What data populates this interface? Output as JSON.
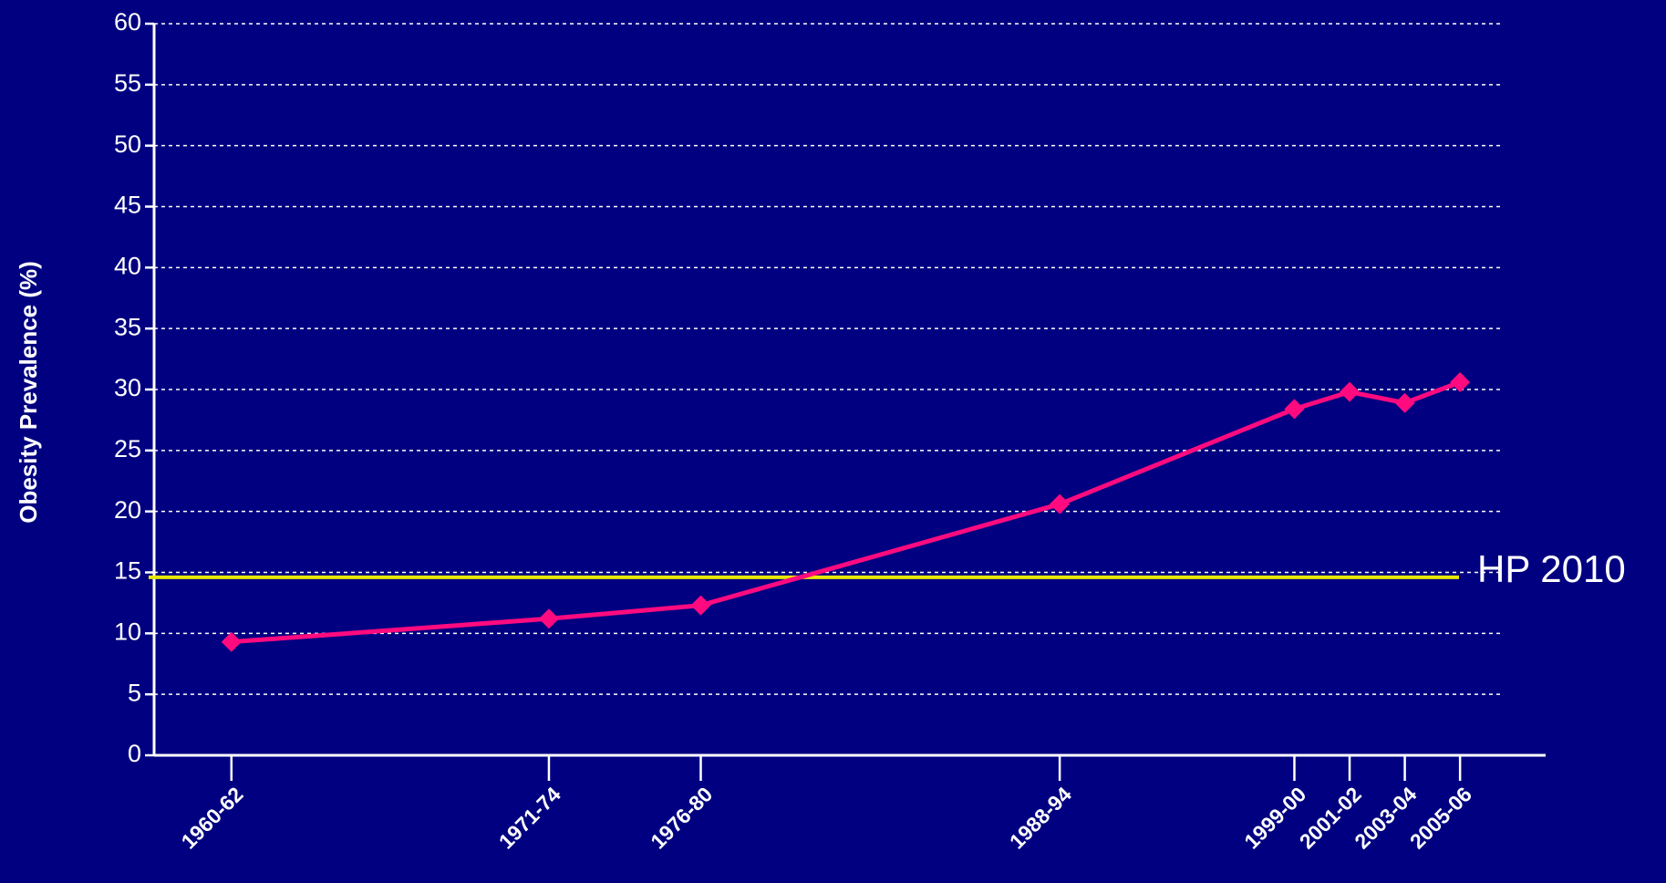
{
  "chart_data": {
    "type": "line",
    "y_label": "Obesity Prevalence (%)",
    "x": [
      1961,
      1972.5,
      1978,
      1991,
      1999.5,
      2001.5,
      2003.5,
      2005.5
    ],
    "values": [
      9.3,
      11.2,
      12.3,
      20.6,
      28.4,
      29.8,
      28.9,
      30.6
    ],
    "color": "#ff0a7f",
    "xlim": [
      1958.2,
      2008.6
    ],
    "xticks": [
      {
        "value": 1961,
        "label": "1960-62"
      },
      {
        "value": 1972.5,
        "label": "1971-74"
      },
      {
        "value": 1978,
        "label": "1976-80"
      },
      {
        "value": 1991,
        "label": "1988-94"
      },
      {
        "value": 1999.5,
        "label": "1999-00"
      },
      {
        "value": 2001.5,
        "label": "2001-02"
      },
      {
        "value": 2003.5,
        "label": "2003-04"
      },
      {
        "value": 2005.5,
        "label": "2005-06"
      }
    ],
    "ylim": [
      0,
      60
    ],
    "yticks": [
      0,
      5,
      10,
      15,
      20,
      25,
      30,
      35,
      40,
      45,
      50,
      55,
      60
    ],
    "grid": true,
    "reference_line": {
      "label": "HP 2010",
      "value": 14.6,
      "color": "#e8e800"
    }
  }
}
